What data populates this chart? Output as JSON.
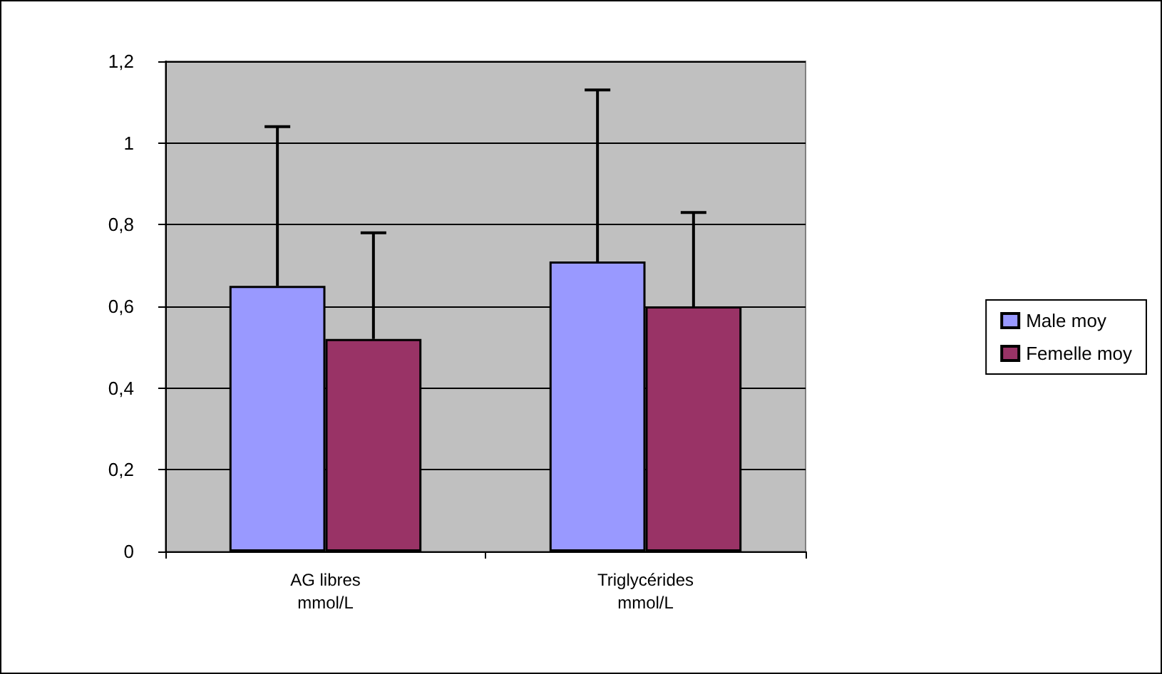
{
  "chart_data": {
    "type": "bar",
    "categories": [
      "AG libres\nmmol/L",
      "Triglycérides\nmmol/L"
    ],
    "series": [
      {
        "name": "Male moy",
        "color": "#9999ff",
        "values": [
          0.65,
          0.71
        ],
        "errors": [
          [
            0.65,
            1.04
          ],
          [
            0.71,
            1.13
          ]
        ]
      },
      {
        "name": "Femelle moy",
        "color": "#993366",
        "values": [
          0.52,
          0.6
        ],
        "errors": [
          [
            0.52,
            0.78
          ],
          [
            0.6,
            0.83
          ]
        ]
      }
    ],
    "ylim": [
      0,
      1.2
    ],
    "yticks": [
      {
        "value": 0,
        "label": "0"
      },
      {
        "value": 0.2,
        "label": "0,2"
      },
      {
        "value": 0.4,
        "label": "0,4"
      },
      {
        "value": 0.6,
        "label": "0,6"
      },
      {
        "value": 0.8,
        "label": "0,8"
      },
      {
        "value": 1,
        "label": "1"
      },
      {
        "value": 1.2,
        "label": "1,2"
      }
    ],
    "grid": "y",
    "legend": "right"
  }
}
